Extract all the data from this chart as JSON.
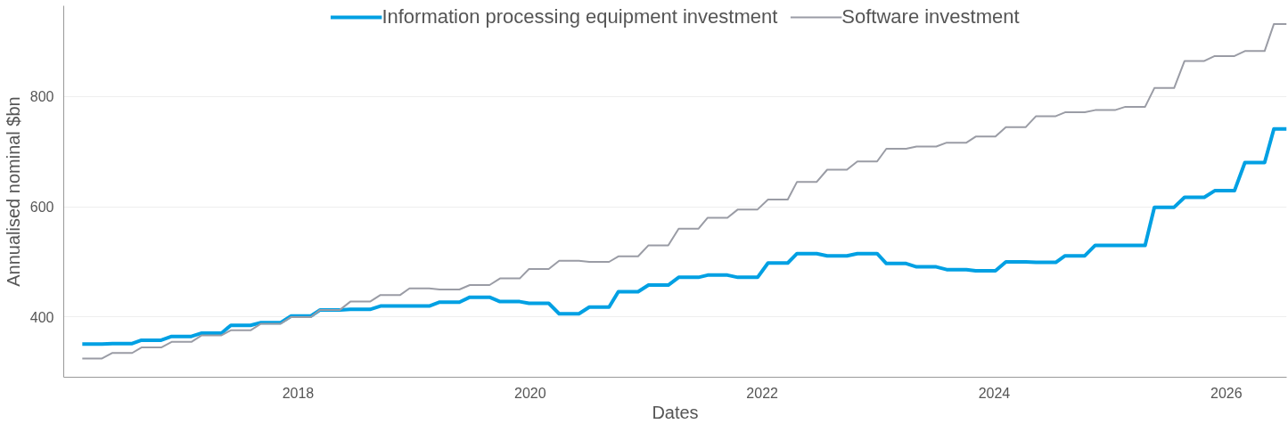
{
  "chart_data": {
    "type": "line",
    "xlabel": "Dates",
    "ylabel": "Annualised nominal $bn",
    "x": [
      2016.14,
      2016.31,
      2016.4,
      2016.57,
      2016.65,
      2016.82,
      2016.91,
      2017.08,
      2017.17,
      2017.34,
      2017.42,
      2017.59,
      2017.68,
      2017.85,
      2017.94,
      2018.11,
      2018.19,
      2018.36,
      2018.45,
      2018.62,
      2018.71,
      2018.88,
      2018.96,
      2019.13,
      2019.22,
      2019.39,
      2019.48,
      2019.65,
      2019.74,
      2019.91,
      2019.99,
      2020.16,
      2020.25,
      2020.42,
      2020.51,
      2020.68,
      2020.76,
      2020.93,
      2021.02,
      2021.19,
      2021.28,
      2021.45,
      2021.53,
      2021.7,
      2021.79,
      2021.96,
      2022.05,
      2022.22,
      2022.3,
      2022.47,
      2022.56,
      2022.73,
      2022.82,
      2022.99,
      2023.07,
      2023.24,
      2023.33,
      2023.5,
      2023.59,
      2023.76,
      2023.84,
      2024.01,
      2024.1,
      2024.27,
      2024.36,
      2024.53,
      2024.61,
      2024.78,
      2024.87,
      2025.04,
      2025.13,
      2025.3,
      2025.38,
      2025.55,
      2025.64,
      2025.81,
      2025.9,
      2026.07,
      2026.16,
      2026.33,
      2026.41,
      2026.52
    ],
    "series": [
      {
        "name": "Information processing equipment investment",
        "color": "#00a0e3",
        "values": [
          351,
          351,
          352,
          352,
          358,
          358,
          365,
          365,
          371,
          371,
          385,
          385,
          390,
          390,
          402,
          402,
          413,
          413,
          414,
          414,
          420,
          420,
          420,
          420,
          427,
          427,
          436,
          436,
          428,
          428,
          425,
          425,
          406,
          406,
          418,
          418,
          446,
          446,
          458,
          458,
          472,
          472,
          476,
          476,
          472,
          472,
          498,
          498,
          515,
          515,
          511,
          511,
          515,
          515,
          497,
          497,
          491,
          491,
          486,
          486,
          484,
          484,
          500,
          500,
          499,
          499,
          511,
          511,
          530,
          530,
          530,
          530,
          599,
          599,
          617,
          617,
          629,
          629,
          680,
          680,
          741,
          741
        ]
      },
      {
        "name": "Software investment",
        "color": "#9a9ca5",
        "values": [
          325,
          325,
          335,
          335,
          345,
          345,
          355,
          355,
          367,
          367,
          376,
          376,
          388,
          388,
          400,
          400,
          413,
          413,
          428,
          428,
          440,
          440,
          452,
          452,
          450,
          450,
          458,
          458,
          470,
          470,
          487,
          487,
          502,
          502,
          500,
          500,
          510,
          510,
          530,
          530,
          560,
          560,
          580,
          580,
          595,
          595,
          613,
          613,
          645,
          645,
          667,
          667,
          682,
          682,
          705,
          705,
          709,
          709,
          716,
          716,
          727,
          727,
          744,
          744,
          764,
          764,
          771,
          771,
          775,
          775,
          781,
          781,
          815,
          815,
          864,
          864,
          873,
          873,
          882,
          882,
          931,
          931
        ]
      }
    ],
    "xlim": [
      2015.98,
      2026.52
    ],
    "xticks": [
      2018,
      2020,
      2022,
      2024,
      2026
    ],
    "ylim": [
      291,
      964
    ],
    "yticks": [
      400,
      600,
      800
    ],
    "grid": "y",
    "legend": "top",
    "marker": "none",
    "line_style": "solid"
  }
}
